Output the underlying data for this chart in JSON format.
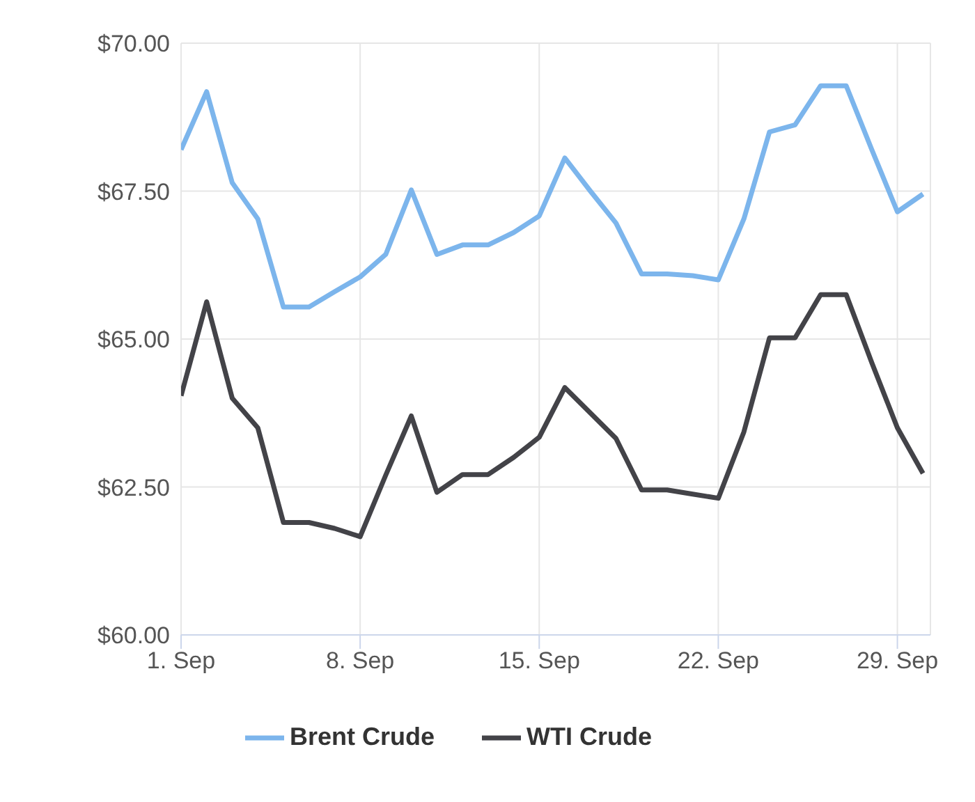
{
  "chart_data": {
    "type": "line",
    "x": [
      "--09-01",
      "--09-02",
      "--09-03",
      "--09-04",
      "--09-05",
      "--09-06",
      "--09-07",
      "--09-08",
      "--09-09",
      "--09-10",
      "--09-11",
      "--09-12",
      "--09-13",
      "--09-14",
      "--09-15",
      "--09-16",
      "--09-17",
      "--09-18",
      "--09-19",
      "--09-20",
      "--09-21",
      "--09-22",
      "--09-23",
      "--09-24",
      "--09-25",
      "--09-26",
      "--09-27",
      "--09-28",
      "--09-29",
      "--09-30"
    ],
    "series": [
      {
        "name": "Brent Crude",
        "color": "#7cb5ec",
        "values": [
          68.2,
          69.18,
          67.64,
          67.03,
          65.54,
          65.54,
          65.8,
          66.05,
          66.43,
          67.52,
          66.43,
          66.59,
          66.59,
          66.8,
          67.08,
          68.06,
          67.5,
          66.96,
          66.1,
          66.1,
          66.07,
          66.0,
          67.03,
          68.5,
          68.62,
          69.28,
          69.28,
          68.2,
          67.15,
          67.45
        ]
      },
      {
        "name": "WTI Crude",
        "color": "#434348",
        "values": [
          64.04,
          65.63,
          64.0,
          63.5,
          61.9,
          61.9,
          61.8,
          61.66,
          62.7,
          63.7,
          62.41,
          62.71,
          62.71,
          63.0,
          63.34,
          64.18,
          63.75,
          63.32,
          62.45,
          62.45,
          62.38,
          62.31,
          63.43,
          65.02,
          65.02,
          65.75,
          65.75,
          64.6,
          63.5,
          62.73
        ]
      }
    ],
    "xlim": [
      "--09-01",
      "--09-30T07:00"
    ],
    "xticks": [
      {
        "value": "--09-01",
        "label": "1. Sep"
      },
      {
        "value": "--09-08",
        "label": "8. Sep"
      },
      {
        "value": "--09-15",
        "label": "15. Sep"
      },
      {
        "value": "--09-22",
        "label": "22. Sep"
      },
      {
        "value": "--09-29",
        "label": "29. Sep"
      }
    ],
    "ylim": [
      60,
      70
    ],
    "yticks": [
      {
        "value": 60,
        "label": "$60.00"
      },
      {
        "value": 62.5,
        "label": "$62.50"
      },
      {
        "value": 65,
        "label": "$65.00"
      },
      {
        "value": 67.5,
        "label": "$67.50"
      },
      {
        "value": 70,
        "label": "$70.00"
      }
    ],
    "grid": true,
    "legend": "bottom",
    "marker": "none",
    "line_style": "solid"
  }
}
